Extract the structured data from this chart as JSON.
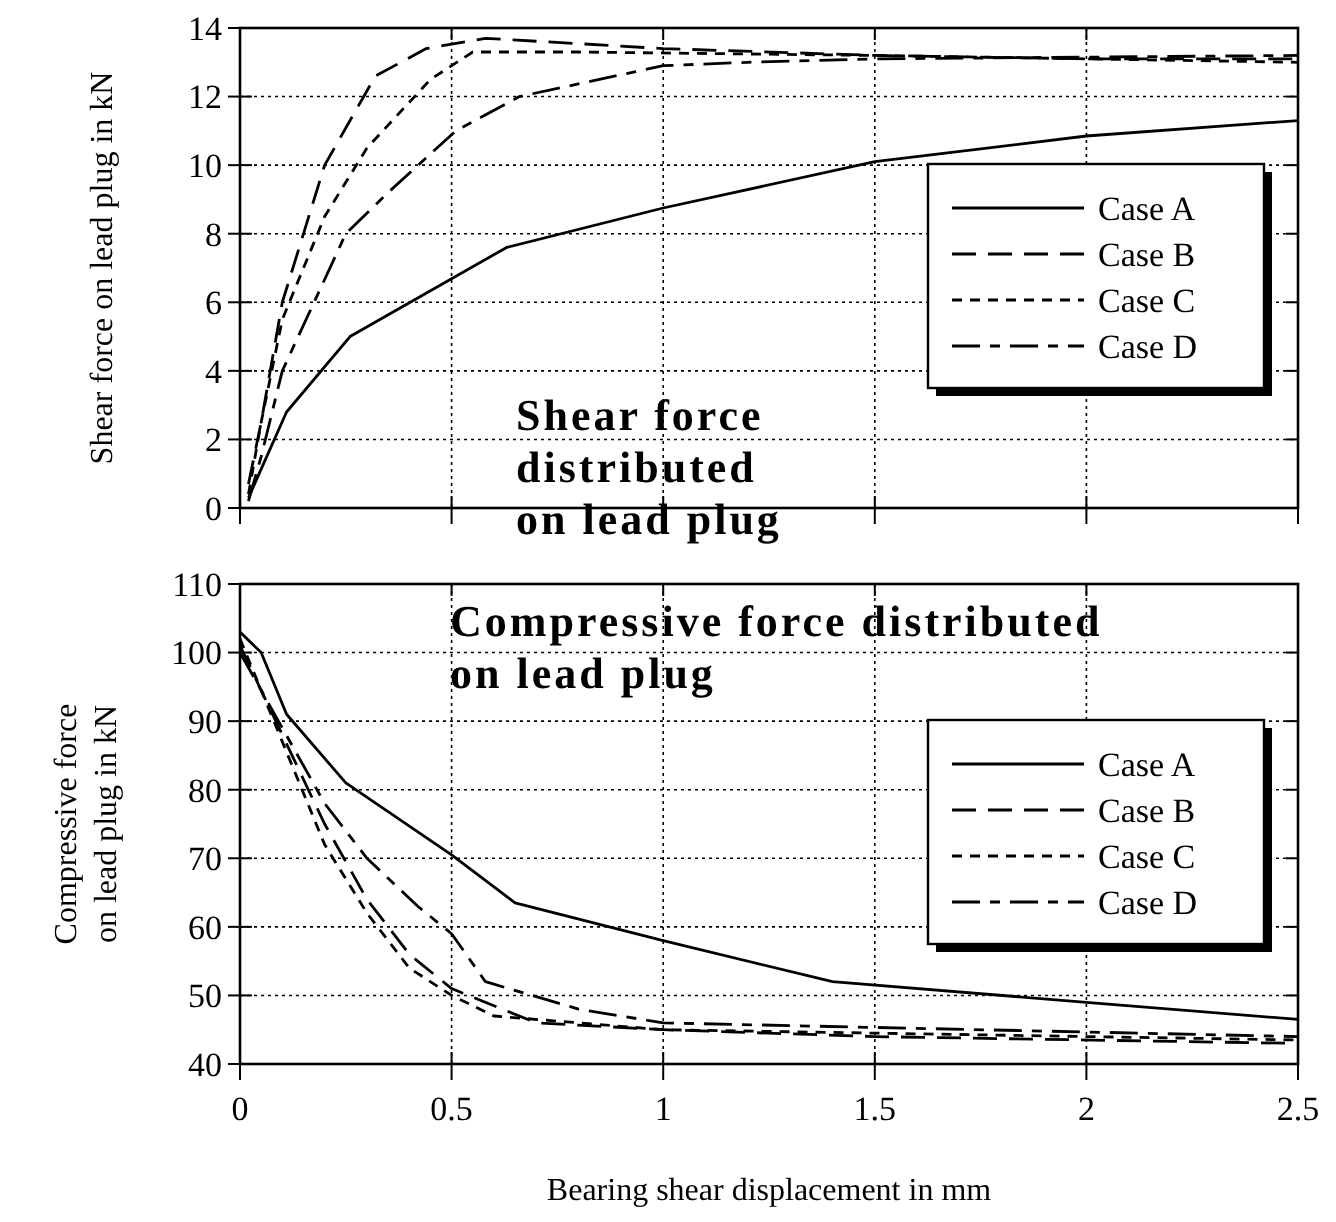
{
  "chart_data": [
    {
      "type": "line",
      "ylabel": "Shear force on lead plug in kN",
      "annotations": [
        "Shear force distributed on lead plug"
      ],
      "xlim": [
        0,
        2.5
      ],
      "xticks": [
        0,
        0.5,
        1,
        1.5,
        2,
        2.5
      ],
      "ylim": [
        0,
        14
      ],
      "yticks": [
        0,
        2,
        4,
        6,
        8,
        10,
        12,
        14
      ],
      "grid": true,
      "legend": "right",
      "tick_labels": "y",
      "series": [
        {
          "name": "Case A",
          "color": "#000000",
          "line_style": "solid",
          "x": [
            0.02,
            0.11,
            0.26,
            0.63,
            1.0,
            1.5,
            2.0,
            2.5
          ],
          "values": [
            0.3,
            2.8,
            5.0,
            7.6,
            8.75,
            10.1,
            10.85,
            11.3
          ]
        },
        {
          "name": "Case B",
          "color": "#000000",
          "line_style": "dashed",
          "x": [
            0.02,
            0.05,
            0.1,
            0.2,
            0.32,
            0.44,
            0.58,
            1.0,
            1.5,
            2.0,
            2.5
          ],
          "values": [
            0.7,
            2.5,
            6,
            10,
            12.6,
            13.4,
            13.7,
            13.4,
            13.2,
            13.1,
            13.1
          ]
        },
        {
          "name": "Case C",
          "color": "#000000",
          "line_style": "dotted",
          "x": [
            0.02,
            0.05,
            0.1,
            0.2,
            0.3,
            0.45,
            0.55,
            0.8,
            1.5,
            2.5
          ],
          "values": [
            0.4,
            2.5,
            5.5,
            8.5,
            10.5,
            12.5,
            13.3,
            13.3,
            13.2,
            13.0
          ]
        },
        {
          "name": "Case D",
          "color": "#000000",
          "line_style": "dashdot",
          "x": [
            0.02,
            0.05,
            0.1,
            0.25,
            0.35,
            0.51,
            0.66,
            1.0,
            1.2,
            1.5,
            2.5
          ],
          "values": [
            0.2,
            1.5,
            4,
            8,
            9.2,
            11.0,
            12.0,
            12.9,
            13.0,
            13.1,
            13.2
          ]
        }
      ]
    },
    {
      "type": "line",
      "xlabel": "Bearing shear displacement in mm",
      "ylabel": "Compressive force\non lead plug in kN",
      "annotations": [
        "Compressive force distributed on lead plug"
      ],
      "xlim": [
        0,
        2.5
      ],
      "xticks": [
        0,
        0.5,
        1,
        1.5,
        2,
        2.5
      ],
      "ylim": [
        40,
        110
      ],
      "yticks": [
        40,
        50,
        60,
        70,
        80,
        90,
        100,
        110
      ],
      "grid": true,
      "legend": "right",
      "series": [
        {
          "name": "Case A",
          "color": "#000000",
          "line_style": "solid",
          "x": [
            0,
            0.05,
            0.11,
            0.25,
            0.5,
            0.65,
            1.0,
            1.4,
            2.0,
            2.5
          ],
          "values": [
            103,
            100,
            91,
            81,
            70.5,
            63.5,
            58,
            52,
            49,
            46.5
          ]
        },
        {
          "name": "Case B",
          "color": "#000000",
          "line_style": "dashed",
          "x": [
            0,
            0.1,
            0.2,
            0.3,
            0.4,
            0.5,
            0.7,
            1.0,
            1.5,
            2.5
          ],
          "values": [
            101,
            88,
            75,
            64,
            56,
            51,
            46,
            45,
            44,
            43
          ]
        },
        {
          "name": "Case C",
          "color": "#000000",
          "line_style": "dotted",
          "x": [
            0,
            0.1,
            0.2,
            0.3,
            0.4,
            0.5,
            0.6,
            1.0,
            2.5
          ],
          "values": [
            102,
            87,
            72,
            62,
            54,
            50,
            47,
            45,
            43.5
          ]
        },
        {
          "name": "Case D",
          "color": "#000000",
          "line_style": "dashdot",
          "x": [
            0,
            0.1,
            0.2,
            0.3,
            0.42,
            0.5,
            0.58,
            0.8,
            1.0,
            2.5
          ],
          "values": [
            100,
            89,
            78,
            70,
            63,
            59,
            52,
            48,
            46,
            44
          ]
        }
      ]
    }
  ]
}
